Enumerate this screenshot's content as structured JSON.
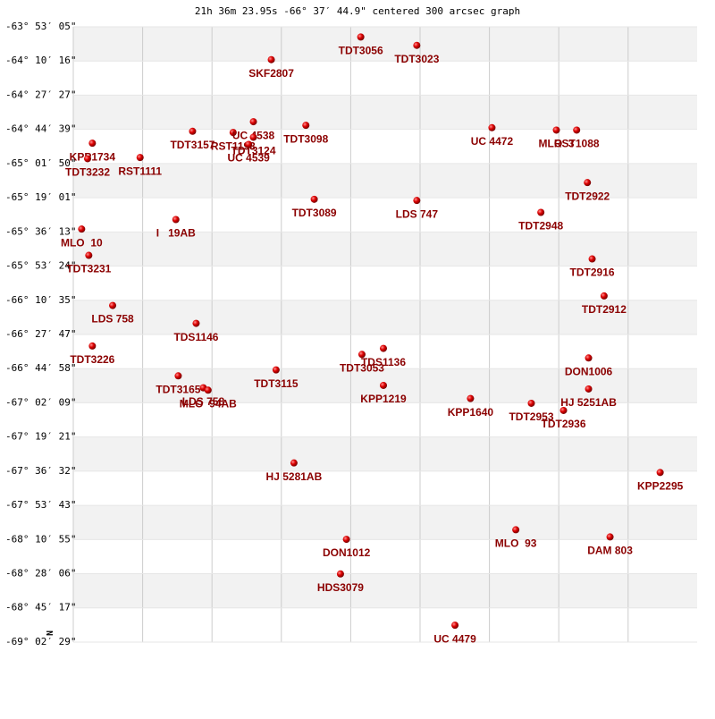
{
  "chart_data": {
    "type": "scatter",
    "title": "21h 36m 23.95s -66° 37′ 44.9\" centered 300 arcsec graph",
    "orientation_label": "N",
    "color": "#cc0000",
    "label_color": "#8b0000",
    "xlim": [
      0,
      5.23
    ],
    "ylim": [
      -63.8847,
      -69.0414
    ],
    "yticks": [
      {
        "value": -63.8847,
        "label": "-63° 53′ 05\""
      },
      {
        "value": -64.1711,
        "label": "-64° 10′ 16\""
      },
      {
        "value": -64.4575,
        "label": "-64° 27′ 27\""
      },
      {
        "value": -64.7442,
        "label": "-64° 44′ 39\""
      },
      {
        "value": -65.0306,
        "label": "-65° 01′ 50\""
      },
      {
        "value": -65.3169,
        "label": "-65° 19′ 01\""
      },
      {
        "value": -65.6036,
        "label": "-65° 36′ 13\""
      },
      {
        "value": -65.89,
        "label": "-65° 53′ 24\""
      },
      {
        "value": -66.1764,
        "label": "-66° 10′ 35\""
      },
      {
        "value": -66.4631,
        "label": "-66° 27′ 47\""
      },
      {
        "value": -66.7494,
        "label": "-66° 44′ 58\""
      },
      {
        "value": -67.0358,
        "label": "-67° 02′ 09\""
      },
      {
        "value": -67.3225,
        "label": "-67° 19′ 21\""
      },
      {
        "value": -67.6089,
        "label": "-67° 36′ 32\""
      },
      {
        "value": -67.8953,
        "label": "-67° 53′ 43\""
      },
      {
        "value": -68.1819,
        "label": "-68° 10′ 55\""
      },
      {
        "value": -68.4683,
        "label": "-68° 28′ 06\""
      },
      {
        "value": -68.7547,
        "label": "-68° 45′ 17\""
      },
      {
        "value": -69.0414,
        "label": "-69° 02′ 29\""
      }
    ],
    "grid": true,
    "labels": [
      "TDT3056",
      "TDT3023",
      "SKF2807",
      "KPP1734",
      "TDT3232",
      "RST1111",
      "TDT3157",
      "RST1193",
      "UC 4538",
      "UC 4539",
      "TDT3124",
      "TDT3098",
      "UC 4472",
      "MLO  3",
      "RST1088",
      "TDT2922",
      "TDT3089",
      "LDS 747",
      "TDT2948",
      "MLO  10",
      "I   19AB",
      "TDT3231",
      "TDT2916",
      "TDT2912",
      "LDS 758",
      "TDS1146",
      "TDT3226",
      "TDS1136",
      "TDT3053",
      "DON1006",
      "TDT3115",
      "TDT3165",
      "KPP1219",
      "HJ 5251AB",
      "LDS 758",
      "MLO  94AB",
      "KPP1640",
      "TDT2953",
      "TDT2936",
      "HJ 5281AB",
      "KPP2295",
      "MLO  93",
      "DAM 803",
      "DON1012",
      "HDS3079",
      "UC 4479"
    ],
    "x": [
      2.41,
      2.88,
      1.66,
      0.16,
      0.12,
      0.56,
      1.0,
      1.34,
      1.51,
      1.47,
      1.51,
      1.95,
      3.51,
      4.05,
      4.22,
      4.31,
      2.02,
      2.88,
      3.92,
      0.07,
      0.86,
      0.13,
      4.35,
      4.45,
      0.33,
      1.03,
      0.16,
      2.6,
      2.42,
      4.32,
      1.7,
      0.88,
      2.6,
      4.32,
      1.09,
      1.13,
      3.33,
      3.84,
      4.11,
      1.85,
      4.92,
      3.71,
      4.5,
      2.29,
      2.24,
      3.2
    ],
    "values": [
      -63.97,
      -64.04,
      -64.16,
      -64.86,
      -64.99,
      -64.98,
      -64.76,
      -64.77,
      -64.68,
      -64.87,
      -64.81,
      -64.71,
      -64.73,
      -64.75,
      -64.75,
      -65.19,
      -65.33,
      -65.34,
      -65.44,
      -65.58,
      -65.5,
      -65.8,
      -65.83,
      -66.14,
      -66.22,
      -66.37,
      -66.56,
      -66.58,
      -66.63,
      -66.66,
      -66.76,
      -66.81,
      -66.89,
      -66.92,
      -66.91,
      -66.93,
      -67.0,
      -67.04,
      -67.1,
      -67.54,
      -67.62,
      -68.1,
      -68.16,
      -68.18,
      -68.47,
      -68.9
    ]
  }
}
